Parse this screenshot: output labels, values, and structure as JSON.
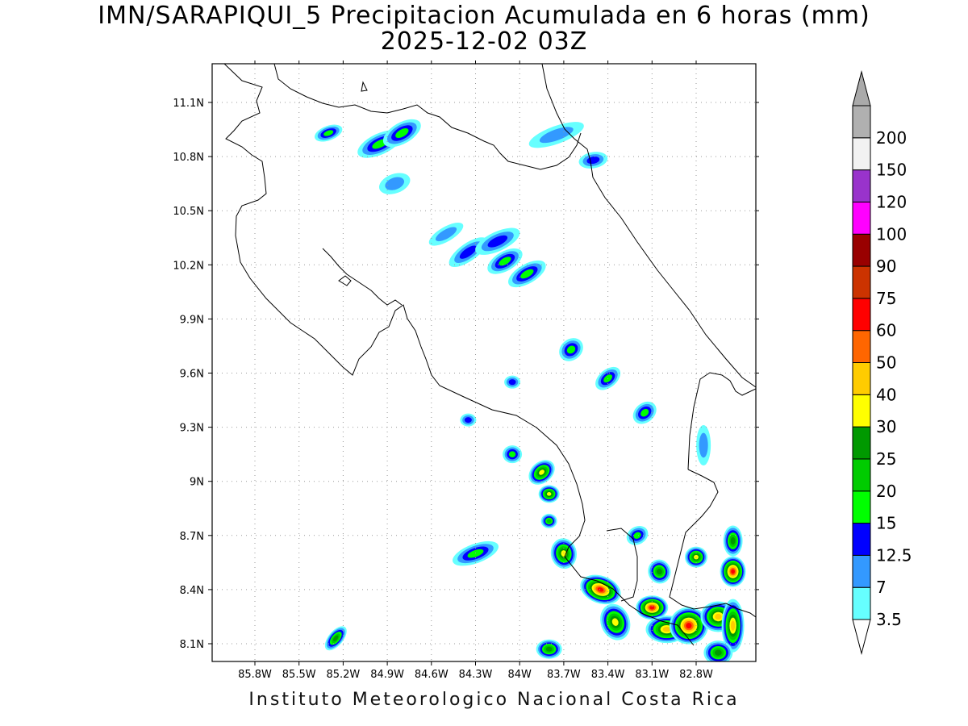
{
  "title": {
    "line1": "IMN/SARAPIQUI_5 Precipitacion Acumulada en 6 horas (mm)",
    "line2": "2025-12-02 03Z"
  },
  "footer": "Instituto Meteorologico Nacional Costa Rica",
  "map": {
    "lat_range": [
      8.0,
      11.3
    ],
    "lon_range": [
      -86.0,
      -83.0
    ],
    "lat_ticks": [
      {
        "value": 8.1,
        "label": "8.1N"
      },
      {
        "value": 8.4,
        "label": "8.4N"
      },
      {
        "value": 8.7,
        "label": "8.7N"
      },
      {
        "value": 9.0,
        "label": "9N"
      },
      {
        "value": 9.3,
        "label": "9.3N"
      },
      {
        "value": 9.6,
        "label": "9.6N"
      },
      {
        "value": 9.9,
        "label": "9.9N"
      },
      {
        "value": 10.2,
        "label": "10.2N"
      },
      {
        "value": 10.5,
        "label": "10.5N"
      },
      {
        "value": 10.8,
        "label": "10.8N"
      },
      {
        "value": 11.1,
        "label": "11.1N"
      }
    ],
    "lon_ticks": [
      {
        "value": -85.8,
        "label": "85.8W"
      },
      {
        "value": -85.5,
        "label": "85.5W"
      },
      {
        "value": -85.2,
        "label": "85.2W"
      },
      {
        "value": -84.9,
        "label": "84.9W"
      },
      {
        "value": -84.6,
        "label": "84.6W"
      },
      {
        "value": -84.3,
        "label": "84.3W"
      },
      {
        "value": -84.0,
        "label": "84W"
      },
      {
        "value": -83.7,
        "label": "83.7W"
      },
      {
        "value": -83.4,
        "label": "83.4W"
      },
      {
        "value": -83.1,
        "label": "83.1W"
      },
      {
        "value": -82.8,
        "label": "82.8W"
      }
    ],
    "grid": true
  },
  "colorbar": {
    "levels": [
      "3.5",
      "7",
      "12.5",
      "15",
      "20",
      "25",
      "30",
      "40",
      "50",
      "60",
      "75",
      "90",
      "100",
      "120",
      "150",
      "200"
    ],
    "colors": [
      "#66ffff",
      "#3399ff",
      "#0000ff",
      "#00ff00",
      "#00cc00",
      "#009900",
      "#ffff00",
      "#ffcc00",
      "#ff6600",
      "#ff0000",
      "#cc3300",
      "#990000",
      "#ff00ff",
      "#9933cc",
      "#f2f2f2",
      "#b0b0b0"
    ],
    "lower_arrow_color": "#ffffff",
    "upper_arrow_color": "#aaaaaa"
  },
  "precip_cells": [
    {
      "lon": -85.3,
      "lat": 10.93,
      "rx": 14,
      "ry": 6,
      "rot": -20,
      "level": 3
    },
    {
      "lon": -84.95,
      "lat": 10.87,
      "rx": 26,
      "ry": 10,
      "rot": -25,
      "level": 3
    },
    {
      "lon": -84.8,
      "lat": 10.93,
      "rx": 22,
      "ry": 10,
      "rot": -30,
      "level": 3
    },
    {
      "lon": -84.85,
      "lat": 10.65,
      "rx": 16,
      "ry": 9,
      "rot": -20,
      "level": 1
    },
    {
      "lon": -84.5,
      "lat": 10.37,
      "rx": 20,
      "ry": 6,
      "rot": -30,
      "level": 1
    },
    {
      "lon": -84.35,
      "lat": 10.27,
      "rx": 24,
      "ry": 8,
      "rot": -35,
      "level": 2
    },
    {
      "lon": -84.15,
      "lat": 10.33,
      "rx": 26,
      "ry": 9,
      "rot": -25,
      "level": 2
    },
    {
      "lon": -84.1,
      "lat": 10.22,
      "rx": 20,
      "ry": 9,
      "rot": -30,
      "level": 3
    },
    {
      "lon": -83.95,
      "lat": 10.15,
      "rx": 22,
      "ry": 9,
      "rot": -30,
      "level": 3
    },
    {
      "lon": -83.75,
      "lat": 10.92,
      "rx": 32,
      "ry": 8,
      "rot": -20,
      "level": 1
    },
    {
      "lon": -83.5,
      "lat": 10.78,
      "rx": 14,
      "ry": 7,
      "rot": -10,
      "level": 2
    },
    {
      "lon": -83.65,
      "lat": 9.73,
      "rx": 12,
      "ry": 10,
      "rot": -40,
      "level": 3
    },
    {
      "lon": -83.4,
      "lat": 9.57,
      "rx": 14,
      "ry": 8,
      "rot": -40,
      "level": 3
    },
    {
      "lon": -83.15,
      "lat": 9.38,
      "rx": 12,
      "ry": 9,
      "rot": -40,
      "level": 3
    },
    {
      "lon": -84.05,
      "lat": 9.55,
      "rx": 6,
      "ry": 5,
      "rot": 0,
      "level": 2
    },
    {
      "lon": -84.35,
      "lat": 9.34,
      "rx": 6,
      "ry": 5,
      "rot": 0,
      "level": 2
    },
    {
      "lon": -83.85,
      "lat": 9.05,
      "rx": 14,
      "ry": 10,
      "rot": -40,
      "level": 6
    },
    {
      "lon": -83.8,
      "lat": 8.93,
      "rx": 9,
      "ry": 8,
      "rot": 0,
      "level": 6
    },
    {
      "lon": -83.7,
      "lat": 8.6,
      "rx": 12,
      "ry": 16,
      "rot": -10,
      "level": 6
    },
    {
      "lon": -84.3,
      "lat": 8.6,
      "rx": 26,
      "ry": 9,
      "rot": -20,
      "level": 3
    },
    {
      "lon": -83.45,
      "lat": 8.4,
      "rx": 22,
      "ry": 14,
      "rot": 20,
      "level": 9
    },
    {
      "lon": -83.35,
      "lat": 8.22,
      "rx": 14,
      "ry": 20,
      "rot": -20,
      "level": 6
    },
    {
      "lon": -83.1,
      "lat": 8.3,
      "rx": 16,
      "ry": 12,
      "rot": 0,
      "level": 9
    },
    {
      "lon": -83.0,
      "lat": 8.18,
      "rx": 22,
      "ry": 14,
      "rot": 0,
      "level": 7
    },
    {
      "lon": -82.85,
      "lat": 8.2,
      "rx": 20,
      "ry": 20,
      "rot": 0,
      "level": 9
    },
    {
      "lon": -82.65,
      "lat": 8.25,
      "rx": 18,
      "ry": 16,
      "rot": 0,
      "level": 7
    },
    {
      "lon": -82.55,
      "lat": 8.2,
      "rx": 10,
      "ry": 30,
      "rot": 0,
      "level": 7
    },
    {
      "lon": -82.65,
      "lat": 8.05,
      "rx": 14,
      "ry": 12,
      "rot": 0,
      "level": 5
    },
    {
      "lon": -82.55,
      "lat": 8.5,
      "rx": 12,
      "ry": 16,
      "rot": 0,
      "level": 9
    },
    {
      "lon": -82.55,
      "lat": 8.67,
      "rx": 8,
      "ry": 16,
      "rot": 0,
      "level": 5
    },
    {
      "lon": -82.8,
      "lat": 8.58,
      "rx": 10,
      "ry": 10,
      "rot": 0,
      "level": 6
    },
    {
      "lon": -83.05,
      "lat": 8.5,
      "rx": 10,
      "ry": 12,
      "rot": -20,
      "level": 5
    },
    {
      "lon": -83.2,
      "lat": 8.7,
      "rx": 10,
      "ry": 8,
      "rot": -30,
      "level": 3
    },
    {
      "lon": -83.8,
      "lat": 8.07,
      "rx": 12,
      "ry": 9,
      "rot": 0,
      "level": 5
    },
    {
      "lon": -85.25,
      "lat": 8.13,
      "rx": 14,
      "ry": 6,
      "rot": -50,
      "level": 5
    },
    {
      "lon": -84.05,
      "lat": 9.15,
      "rx": 8,
      "ry": 8,
      "rot": 0,
      "level": 3
    },
    {
      "lon": -82.75,
      "lat": 9.2,
      "rx": 5,
      "ry": 22,
      "rot": 0,
      "level": 1
    },
    {
      "lon": -83.8,
      "lat": 8.78,
      "rx": 6,
      "ry": 6,
      "rot": 0,
      "level": 4
    }
  ]
}
